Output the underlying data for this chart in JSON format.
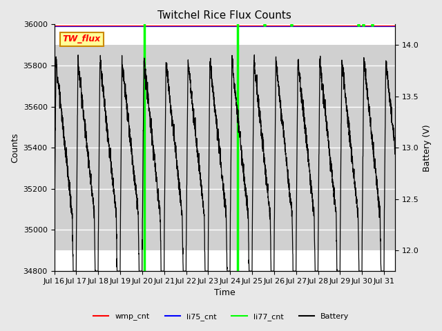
{
  "title": "Twitchel Rice Flux Counts",
  "xlabel": "Time",
  "ylabel_left": "Counts",
  "ylabel_right": "Battery (V)",
  "ylim_left": [
    34800,
    36000
  ],
  "ylim_right": [
    11.8,
    14.2
  ],
  "xlim": [
    0,
    15.5
  ],
  "x_tick_labels": [
    "Jul 16",
    "Jul 17",
    "Jul 18",
    "Jul 19",
    "Jul 20",
    "Jul 21",
    "Jul 22",
    "Jul 23",
    "Jul 24",
    "Jul 25",
    "Jul 26",
    "Jul 27",
    "Jul 28",
    "Jul 29",
    "Jul 30",
    "Jul 31"
  ],
  "x_tick_positions": [
    0,
    1,
    2,
    3,
    4,
    5,
    6,
    7,
    8,
    9,
    10,
    11,
    12,
    13,
    14,
    15
  ],
  "shaded_region": [
    34900,
    35900
  ],
  "legend_entries": [
    "wmp_cnt",
    "li75_cnt",
    "li77_cnt",
    "Battery"
  ],
  "legend_colors": [
    "red",
    "blue",
    "lime",
    "black"
  ],
  "annotation_box_text": "TW_flux",
  "annotation_box_color": "#ffff99",
  "annotation_box_edge": "#cc8800",
  "annotation_text_color": "red",
  "background_color": "#e8e8e8",
  "plot_bg_color": "white",
  "grid_color": "white",
  "battery_base": 12.0,
  "battery_top": 14.0,
  "li77_spikes": [
    4.1,
    8.35
  ],
  "li77_dots": [
    9.55,
    10.8,
    13.85,
    14.05,
    14.45
  ]
}
